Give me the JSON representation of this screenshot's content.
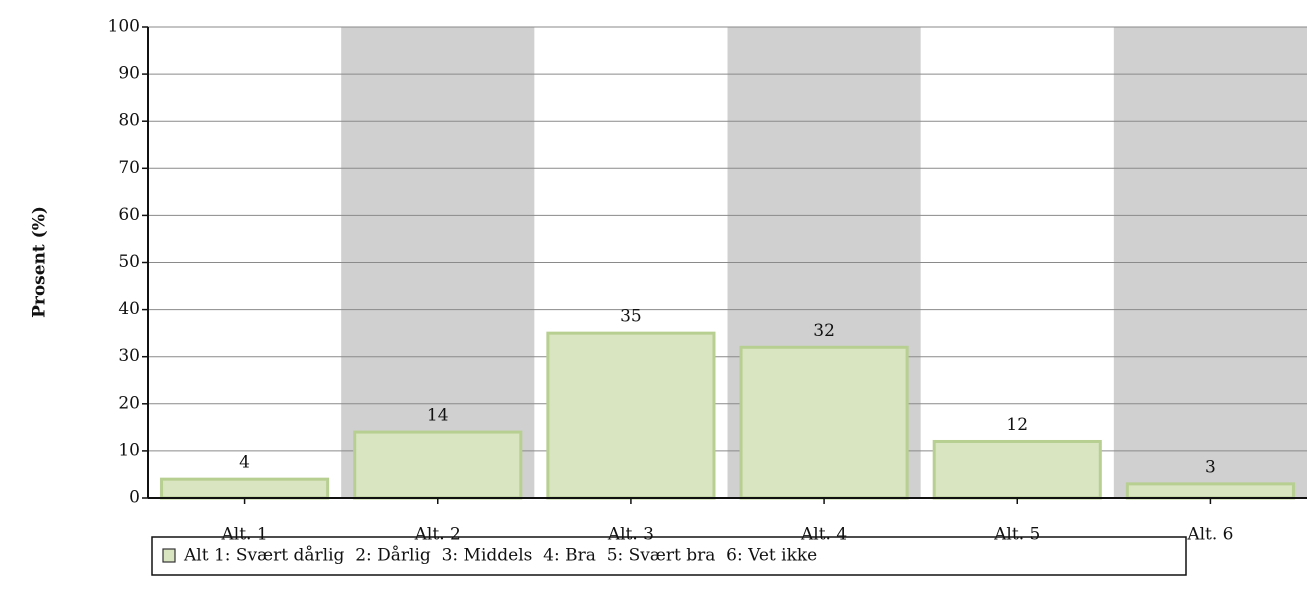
{
  "chart_data": {
    "type": "bar",
    "ylabel": "Prosent (%)",
    "categories": [
      "Alt. 1",
      "Alt. 2",
      "Alt. 3",
      "Alt. 4",
      "Alt. 5",
      "Alt. 6"
    ],
    "series": [
      {
        "name": "Alt 1: Svært dårlig  2: Dårlig  3: Middels  4: Bra  5: Svært bra  6: Vet ikke",
        "color": "#d9e4c1",
        "edge_color": "#b8cf92",
        "values": [
          4,
          14,
          35,
          32,
          12,
          3
        ]
      }
    ],
    "ylim": [
      0,
      100
    ],
    "yticks": [
      0,
      10,
      20,
      30,
      40,
      50,
      60,
      70,
      80,
      90,
      100
    ],
    "grid": true,
    "band_color": "#d0d0d0"
  }
}
